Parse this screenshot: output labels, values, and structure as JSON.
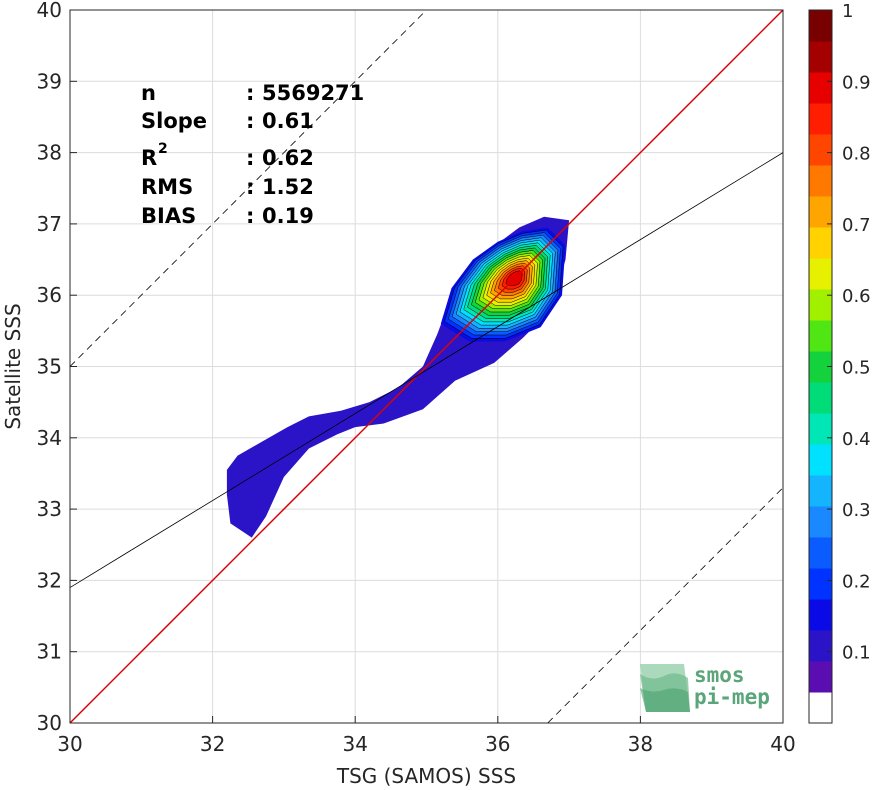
{
  "chart_data": {
    "type": "heatmap",
    "subtype": "density-contour-scatter",
    "xlabel": "TSG (SAMOS) SSS",
    "ylabel": "Satellite SSS",
    "xlim": [
      30,
      40
    ],
    "ylim": [
      30,
      40
    ],
    "xticks": [
      "30",
      "32",
      "34",
      "36",
      "38",
      "40"
    ],
    "yticks": [
      "30",
      "31",
      "32",
      "33",
      "34",
      "35",
      "36",
      "37",
      "38",
      "39",
      "40"
    ],
    "grid": true,
    "stats": [
      {
        "label": "n",
        "sep": ":",
        "value": "5569271"
      },
      {
        "label": "Slope",
        "sep": ":",
        "value": "0.61"
      },
      {
        "label": "R",
        "sup": "2",
        "sep": ":",
        "value": "0.62"
      },
      {
        "label": "RMS",
        "sep": ":",
        "value": "1.52"
      },
      {
        "label": "BIAS",
        "sep": ":",
        "value": "0.19"
      }
    ],
    "lines": {
      "identity": {
        "color": "#e00000",
        "slope": 1,
        "intercept": 0
      },
      "fit": {
        "color": "#000000",
        "slope": 0.61,
        "intercept": 13.6
      },
      "offset_upper": {
        "color": "#000000",
        "style": "dashed",
        "slope": 1,
        "intercept": 5
      },
      "offset_lower": {
        "color": "#000000",
        "style": "dashed",
        "slope": 1,
        "intercept": -6.7
      }
    },
    "density_peak": {
      "x": 36.25,
      "y": 36.25
    },
    "colorbar": {
      "min": 0,
      "max": 1,
      "ticks": [
        "0.1",
        "0.2",
        "0.3",
        "0.4",
        "0.5",
        "0.6",
        "0.7",
        "0.8",
        "0.9",
        "1"
      ],
      "levels": [
        "#ffffff",
        "#5a0db0",
        "#2b14c8",
        "#0a0ae6",
        "#0033ff",
        "#0a5cff",
        "#1a88ff",
        "#14b4ff",
        "#00e1ff",
        "#00e6b4",
        "#00dc78",
        "#14d23c",
        "#50e614",
        "#a0f000",
        "#e6f000",
        "#ffd200",
        "#ffa500",
        "#ff7800",
        "#ff4600",
        "#ff1e00",
        "#e60000",
        "#a50000",
        "#780000"
      ]
    },
    "contour_colors": [
      "#2b14c8",
      "#0a0ae6",
      "#0033ff",
      "#0a5cff",
      "#1a88ff",
      "#14b4ff",
      "#00e1ff",
      "#00e6b4",
      "#00dc78",
      "#14d23c",
      "#50e614",
      "#a0f000",
      "#e6f000",
      "#ffd200",
      "#ffa500",
      "#ff7800",
      "#ff4600",
      "#ff1e00",
      "#e60000"
    ]
  },
  "logo": {
    "line1": "smos",
    "line2": "pi-mep"
  }
}
